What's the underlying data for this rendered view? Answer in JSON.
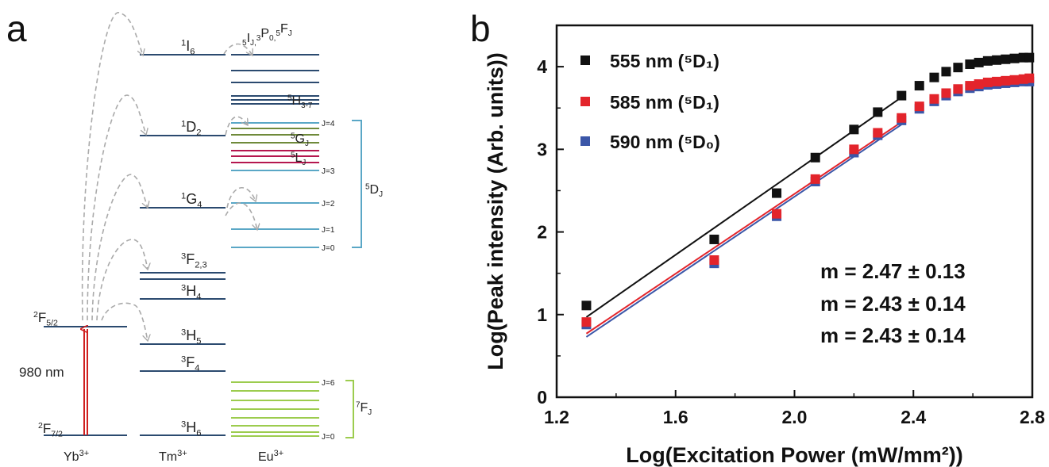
{
  "panel_a": {
    "label": "a",
    "ions": [
      "Yb",
      "Tm",
      "Eu"
    ],
    "ion_charge": "3+",
    "excitation": "980 nm",
    "yb_levels": [
      {
        "name": "F",
        "sup": "2",
        "sub": "5/2"
      },
      {
        "name": "F",
        "sup": "2",
        "sub": "7/2"
      }
    ],
    "tm_levels": [
      {
        "name": "I",
        "sup": "1",
        "sub": "6"
      },
      {
        "name": "D",
        "sup": "1",
        "sub": "2"
      },
      {
        "name": "G",
        "sup": "1",
        "sub": "4"
      },
      {
        "name": "F",
        "sup": "3",
        "sub": "2,3"
      },
      {
        "name": "H",
        "sup": "3",
        "sub": "4"
      },
      {
        "name": "H",
        "sup": "3",
        "sub": "5"
      },
      {
        "name": "F",
        "sup": "3",
        "sub": "4"
      },
      {
        "name": "H",
        "sup": "3",
        "sub": "6"
      }
    ],
    "eu_top_label": {
      "a_sup": "5",
      "a": "I",
      "a_sub": "J,",
      "b_sup": "3",
      "b": "P",
      "b_sub": "0,",
      "c_sup": "5",
      "c": "F",
      "c_sub": "J"
    },
    "eu_labels": [
      {
        "name": "H",
        "sup": "5",
        "sub": "3-7"
      },
      {
        "name": "G",
        "sup": "5",
        "sub": "J"
      },
      {
        "name": "L",
        "sup": "5",
        "sub": "J"
      }
    ],
    "eu_5d": {
      "name": "D",
      "sup": "5",
      "sub": "J",
      "j": [
        "J=4",
        "J=3",
        "J=2",
        "J=1",
        "J=0"
      ]
    },
    "eu_7f": {
      "name": "F",
      "sup": "7",
      "sub": "J",
      "j": [
        "J=6",
        "J=0"
      ]
    },
    "colors": {
      "level": "#2b4a6f",
      "arrow": "#d02020",
      "dashed": "#aaaaaa",
      "d_levels": "#5aa7c6",
      "f_levels": "#9ccc4e",
      "g_levels": "#6f8a3a",
      "l_levels": "#b5174f"
    }
  },
  "chart_data": {
    "panel_label": "b",
    "type": "scatter",
    "xlabel": "Log(Excitation Power (mW/mm²))",
    "ylabel": "Log(Peak intensity (Arb. units))",
    "xlim": [
      1.2,
      2.8
    ],
    "ylim": [
      0,
      4.5
    ],
    "xticks": [
      "1.2",
      "1.6",
      "2.0",
      "2.4",
      "2.8"
    ],
    "yticks": [
      "0",
      "1",
      "2",
      "3",
      "4"
    ],
    "legend_position": "top-left",
    "series": [
      {
        "name": "555 nm (⁵D₁)",
        "color": "#111111",
        "x": [
          1.3,
          1.73,
          1.94,
          2.07,
          2.2,
          2.28,
          2.36,
          2.42,
          2.47,
          2.51,
          2.55,
          2.59,
          2.62,
          2.65,
          2.68,
          2.71,
          2.74,
          2.77,
          2.79
        ],
        "y": [
          1.11,
          1.91,
          2.47,
          2.9,
          3.24,
          3.45,
          3.65,
          3.77,
          3.87,
          3.94,
          3.99,
          4.03,
          4.05,
          4.07,
          4.08,
          4.09,
          4.1,
          4.11,
          4.11
        ]
      },
      {
        "name": "585 nm (⁵D₁)",
        "color": "#e3242b",
        "x": [
          1.3,
          1.73,
          1.94,
          2.07,
          2.2,
          2.28,
          2.36,
          2.42,
          2.47,
          2.51,
          2.55,
          2.59,
          2.62,
          2.65,
          2.68,
          2.71,
          2.74,
          2.77,
          2.79
        ],
        "y": [
          0.91,
          1.66,
          2.22,
          2.64,
          3.0,
          3.2,
          3.38,
          3.52,
          3.61,
          3.68,
          3.73,
          3.77,
          3.79,
          3.81,
          3.82,
          3.83,
          3.84,
          3.85,
          3.86
        ]
      },
      {
        "name": "590 nm (⁵D₀)",
        "color": "#3b56a8",
        "x": [
          1.3,
          1.73,
          1.94,
          2.07,
          2.2,
          2.28,
          2.36,
          2.42,
          2.47,
          2.51,
          2.55,
          2.59,
          2.62,
          2.65,
          2.68,
          2.71,
          2.74,
          2.77,
          2.79
        ],
        "y": [
          0.88,
          1.62,
          2.19,
          2.61,
          2.96,
          3.17,
          3.35,
          3.49,
          3.58,
          3.65,
          3.7,
          3.74,
          3.76,
          3.78,
          3.79,
          3.8,
          3.81,
          3.82,
          3.82
        ]
      }
    ],
    "fits": [
      {
        "color": "#111111",
        "x": [
          1.3,
          2.36
        ],
        "y": [
          0.97,
          3.63
        ]
      },
      {
        "color": "#e3242b",
        "x": [
          1.3,
          2.36
        ],
        "y": [
          0.77,
          3.33
        ]
      },
      {
        "color": "#3b56a8",
        "x": [
          1.3,
          2.36
        ],
        "y": [
          0.73,
          3.3
        ]
      }
    ],
    "annotations": [
      {
        "text": "m = 2.47 ± 0.13",
        "color": "#111111"
      },
      {
        "text": "m = 2.43 ± 0.14",
        "color": "#e3242b"
      },
      {
        "text": "m = 2.43 ± 0.14",
        "color": "#3b56a8"
      }
    ]
  }
}
